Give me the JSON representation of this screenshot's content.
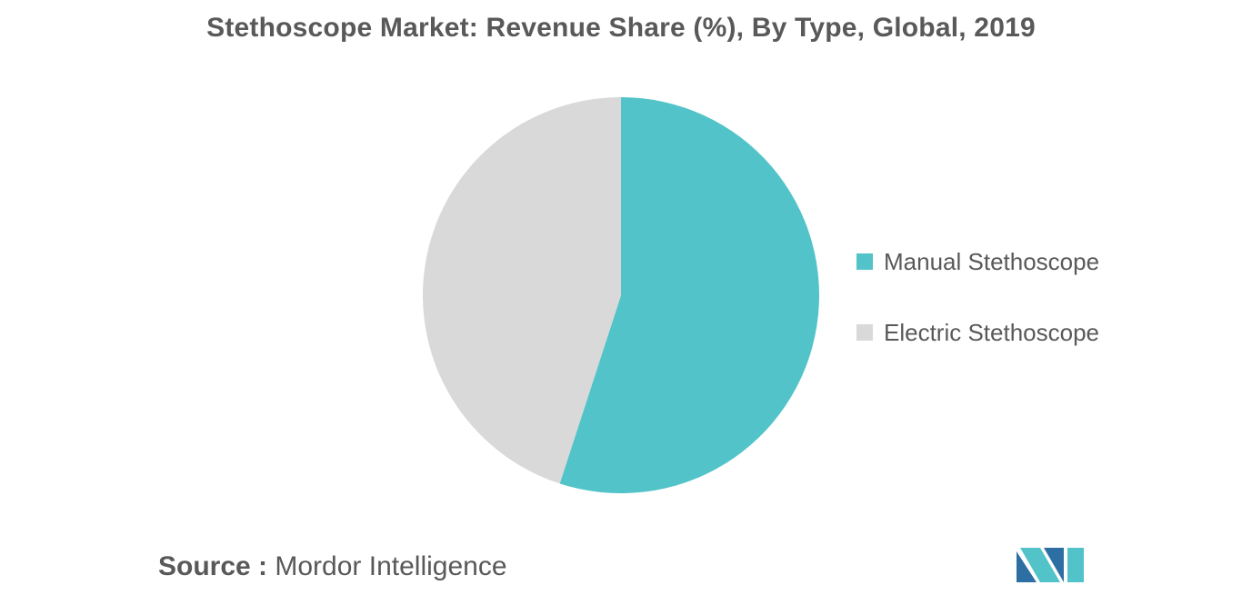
{
  "chart_data": {
    "type": "pie",
    "title": "Stethoscope Market: Revenue Share (%), By Type, Global, 2019",
    "slices": [
      {
        "label": "Manual Stethoscope",
        "value": 55,
        "color": "#52c4c9"
      },
      {
        "label": "Electric Stethoscope",
        "value": 45,
        "color": "#d9d9d9"
      }
    ],
    "start_angle_deg": 0,
    "direction": "clockwise",
    "legend_position": "right"
  },
  "source": {
    "label": "Source :",
    "text": "Mordor Intelligence"
  },
  "logo": {
    "icon": "mordor-intelligence-logo-icon",
    "colors": [
      "#2e6fa3",
      "#52c4c9"
    ]
  }
}
